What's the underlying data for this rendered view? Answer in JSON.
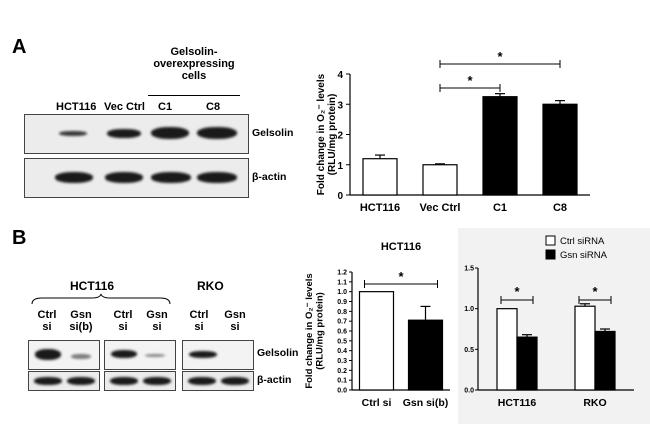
{
  "panel_a": {
    "letter": "A",
    "group_label_line1": "Gelsolin-",
    "group_label_line2": "overexpressing",
    "group_label_line3": "cells",
    "lanes": [
      "HCT116",
      "Vec Ctrl",
      "C1",
      "C8"
    ],
    "row_labels": [
      "Gelsolin",
      "β-actin"
    ]
  },
  "panel_b": {
    "letter": "B",
    "hct116_title": "HCT116",
    "rko_title": "RKO",
    "hct116_lanes": [
      {
        "line1": "Ctrl",
        "line2": "si"
      },
      {
        "line1": "Gsn",
        "line2": "si(b)"
      },
      {
        "line1": "Ctrl",
        "line2": "si"
      },
      {
        "line1": "Gsn",
        "line2": "si"
      }
    ],
    "rko_lanes": [
      {
        "line1": "Ctrl",
        "line2": "si"
      },
      {
        "line1": "Gsn",
        "line2": "si"
      }
    ],
    "row_labels": [
      "Gelsolin",
      "β-actin"
    ]
  },
  "chart_data": [
    {
      "type": "bar",
      "categories": [
        "HCT116",
        "Vec Ctrl",
        "C1",
        "C8"
      ],
      "values": [
        1.2,
        1.0,
        3.25,
        3.0
      ],
      "errors": [
        0.12,
        0.03,
        0.1,
        0.12
      ],
      "fills": [
        "#ffffff",
        "#ffffff",
        "#000000",
        "#000000"
      ],
      "ylabel_line1": "Fold change in O₂⁻ levels",
      "ylabel_line2": "(RLU/mg protein)",
      "ylim": [
        0,
        4
      ],
      "yticks": [
        "0",
        "1",
        "2",
        "3",
        "4"
      ],
      "significance": [
        "*",
        "*"
      ]
    },
    {
      "type": "bar",
      "title": "HCT116",
      "categories": [
        "Ctrl si",
        "Gsn si(b)"
      ],
      "values": [
        1.0,
        0.71
      ],
      "errors": [
        0.0,
        0.14
      ],
      "fills": [
        "#ffffff",
        "#000000"
      ],
      "ylabel_line1": "Fold change in O₂⁻ levels",
      "ylabel_line2": "(RLU/mg protein)",
      "ylim": [
        0,
        1.2
      ],
      "yticks": [
        "0.0",
        "0.1",
        "0.2",
        "0.3",
        "0.4",
        "0.5",
        "0.6",
        "0.7",
        "0.8",
        "0.9",
        "1.0",
        "1.1",
        "1.2"
      ],
      "significance": [
        "*"
      ]
    },
    {
      "type": "bar",
      "categories": [
        "HCT116",
        "RKO"
      ],
      "series": [
        {
          "name": "Ctrl siRNA",
          "values": [
            1.0,
            1.03
          ],
          "errors": [
            0.0,
            0.03
          ],
          "color": "#ffffff"
        },
        {
          "name": "Gsn siRNA",
          "values": [
            0.65,
            0.72
          ],
          "errors": [
            0.03,
            0.03
          ],
          "color": "#000000"
        }
      ],
      "ylim": [
        0,
        1.5
      ],
      "yticks": [
        "0.0",
        "0.5",
        "1.0",
        "1.5"
      ],
      "legend": "top-right",
      "significance": [
        "*",
        "*"
      ]
    }
  ]
}
